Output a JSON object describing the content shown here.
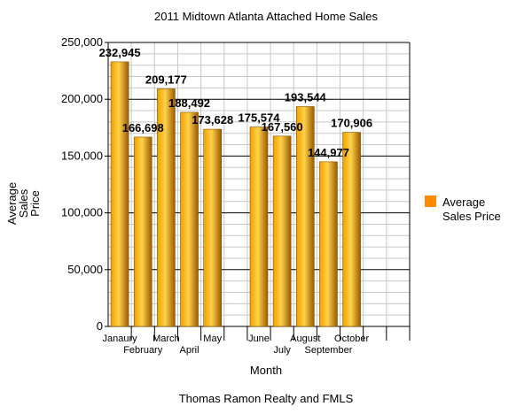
{
  "chart_data": {
    "type": "bar",
    "title": "2011 Midtown Atlanta Attached Home Sales",
    "xlabel": "Month",
    "ylabel_lines": [
      "Average",
      "Sales",
      "Price"
    ],
    "footer": "Thomas Ramon Realty and FMLS",
    "categories": [
      "Janaury",
      "February",
      "March",
      "April",
      "May",
      "",
      "June",
      "July",
      "August",
      "September",
      "October",
      "",
      ""
    ],
    "series": [
      {
        "name_lines": [
          "Average",
          "Sales Price"
        ],
        "values": [
          232945,
          166698,
          209177,
          188492,
          173628,
          null,
          175574,
          167560,
          193544,
          144977,
          170906,
          null,
          null
        ],
        "labels": [
          "232,945",
          "166,698",
          "209,177",
          "188,492",
          "173,628",
          "",
          "175,574",
          "167,560",
          "193,544",
          "144,977",
          "170,906",
          "",
          ""
        ]
      }
    ],
    "ylim": [
      0,
      250000
    ],
    "yticks": [
      0,
      50000,
      100000,
      150000,
      200000,
      250000
    ],
    "ytick_labels": [
      "0",
      "50,000",
      "100,000",
      "150,000",
      "200,000",
      "250,000"
    ],
    "grid": true,
    "legend": "right",
    "colors": {
      "bar_light": "#FFD24A",
      "bar_mid": "#F0A000",
      "bar_dark": "#9A5A00",
      "legend_swatch": "#FF8C00",
      "grid_minor": "#C8C8C8",
      "grid_major": "#000000"
    }
  }
}
